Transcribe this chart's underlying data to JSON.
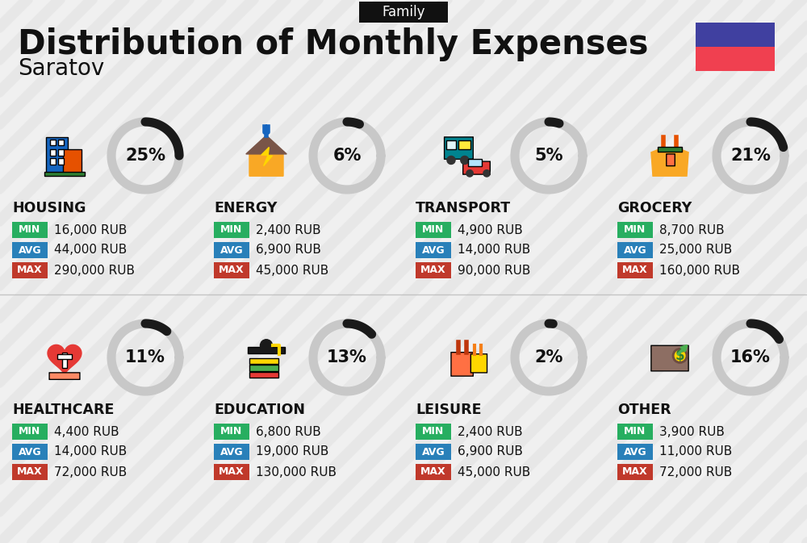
{
  "title": "Distribution of Monthly Expenses",
  "subtitle": "Saratov",
  "tag": "Family",
  "bg_color": "#f0f0f0",
  "categories": [
    {
      "name": "HOUSING",
      "pct": 25,
      "min": "16,000 RUB",
      "avg": "44,000 RUB",
      "max": "290,000 RUB",
      "col": 0,
      "row": 0
    },
    {
      "name": "ENERGY",
      "pct": 6,
      "min": "2,400 RUB",
      "avg": "6,900 RUB",
      "max": "45,000 RUB",
      "col": 1,
      "row": 0
    },
    {
      "name": "TRANSPORT",
      "pct": 5,
      "min": "4,900 RUB",
      "avg": "14,000 RUB",
      "max": "90,000 RUB",
      "col": 2,
      "row": 0
    },
    {
      "name": "GROCERY",
      "pct": 21,
      "min": "8,700 RUB",
      "avg": "25,000 RUB",
      "max": "160,000 RUB",
      "col": 3,
      "row": 0
    },
    {
      "name": "HEALTHCARE",
      "pct": 11,
      "min": "4,400 RUB",
      "avg": "14,000 RUB",
      "max": "72,000 RUB",
      "col": 0,
      "row": 1
    },
    {
      "name": "EDUCATION",
      "pct": 13,
      "min": "6,800 RUB",
      "avg": "19,000 RUB",
      "max": "130,000 RUB",
      "col": 1,
      "row": 1
    },
    {
      "name": "LEISURE",
      "pct": 2,
      "min": "2,400 RUB",
      "avg": "6,900 RUB",
      "max": "45,000 RUB",
      "col": 2,
      "row": 1
    },
    {
      "name": "OTHER",
      "pct": 16,
      "min": "3,900 RUB",
      "avg": "11,000 RUB",
      "max": "72,000 RUB",
      "col": 3,
      "row": 1
    }
  ],
  "min_color": "#27ae60",
  "avg_color": "#2980b9",
  "max_color": "#c0392b",
  "ring_filled": "#1a1a1a",
  "ring_bg": "#c8c8c8",
  "flag_blue": "#4040a0",
  "flag_red": "#f04050",
  "text_dark": "#111111",
  "text_white": "#ffffff",
  "stripe_color": "#e0e0e0",
  "header_bg": "#f5f5f5"
}
